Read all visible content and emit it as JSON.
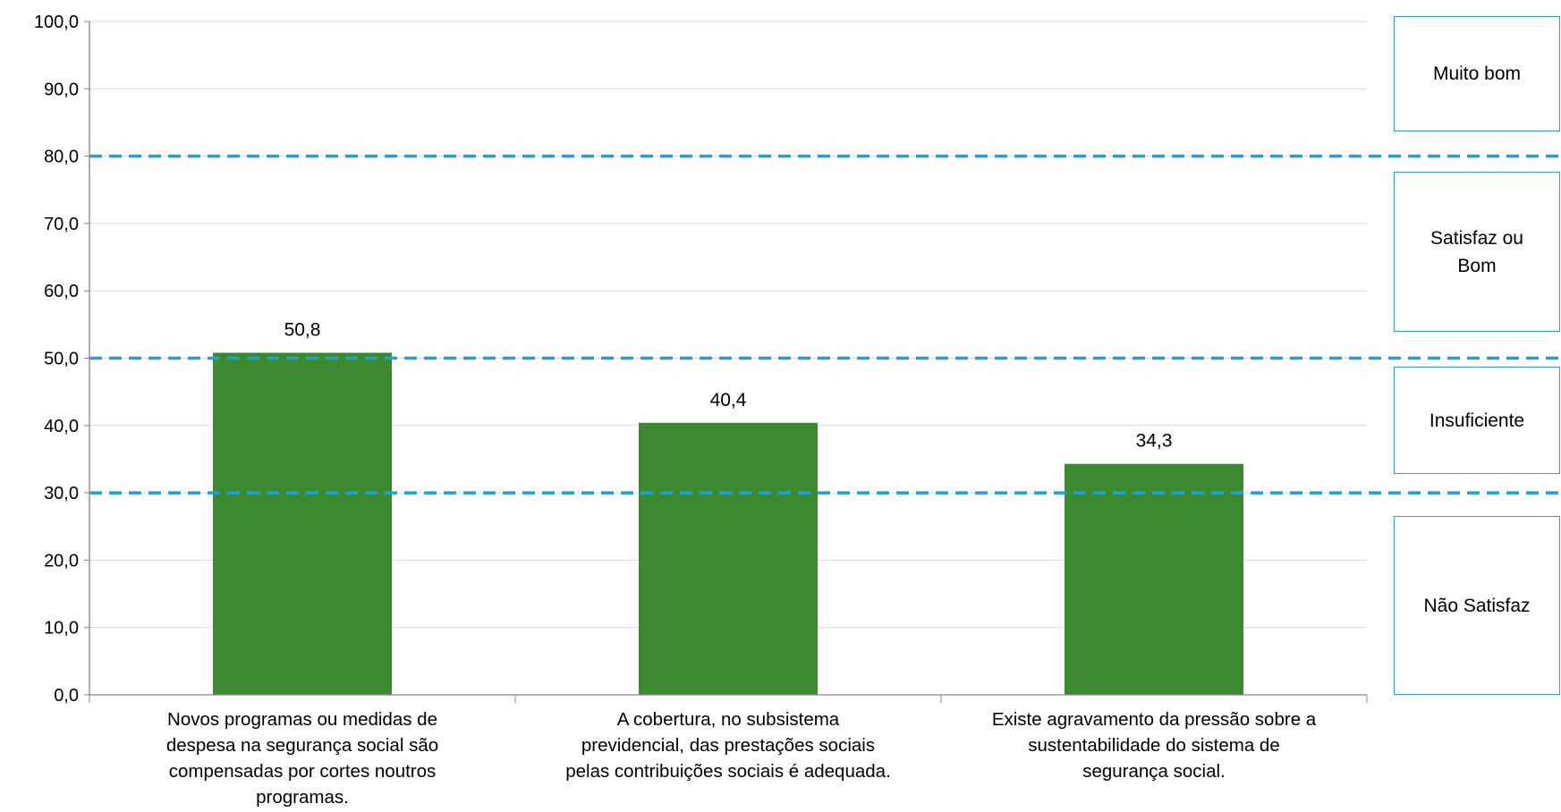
{
  "chart_data": {
    "type": "bar",
    "categories": [
      [
        "Novos programas ou medidas de",
        "despesa na segurança social são",
        "compensadas por cortes noutros",
        "programas."
      ],
      [
        "A cobertura, no subsistema",
        "previdencial, das prestações sociais",
        "pelas contribuições sociais é adequada."
      ],
      [
        "Existe agravamento da pressão sobre a",
        "sustentabilidade do sistema de",
        "segurança social."
      ]
    ],
    "values": [
      50.8,
      40.4,
      34.3
    ],
    "data_labels": [
      "50,8",
      "40,4",
      "34,3"
    ],
    "ylim": [
      0,
      100
    ],
    "yticks": [
      "0,0",
      "10,0",
      "20,0",
      "30,0",
      "40,0",
      "50,0",
      "60,0",
      "70,0",
      "80,0",
      "90,0",
      "100,0"
    ],
    "title": "",
    "xlabel": "",
    "ylabel": "",
    "grid": true,
    "threshold_lines": [
      30,
      50,
      80
    ],
    "bands": [
      {
        "label": "Muito bom",
        "from": 80,
        "to": 100
      },
      {
        "label": "Satisfaz ou Bom",
        "from": 50,
        "to": 80
      },
      {
        "label": "Insuficiente",
        "from": 30,
        "to": 50
      },
      {
        "label": "Não Satisfaz",
        "from": 0,
        "to": 30
      }
    ],
    "colors": {
      "bar": "#3b8a2f",
      "threshold": "#1aa3d9",
      "grid": "#d9d9d9",
      "axis": "#868686",
      "band_border": "#2e9fd3"
    }
  }
}
